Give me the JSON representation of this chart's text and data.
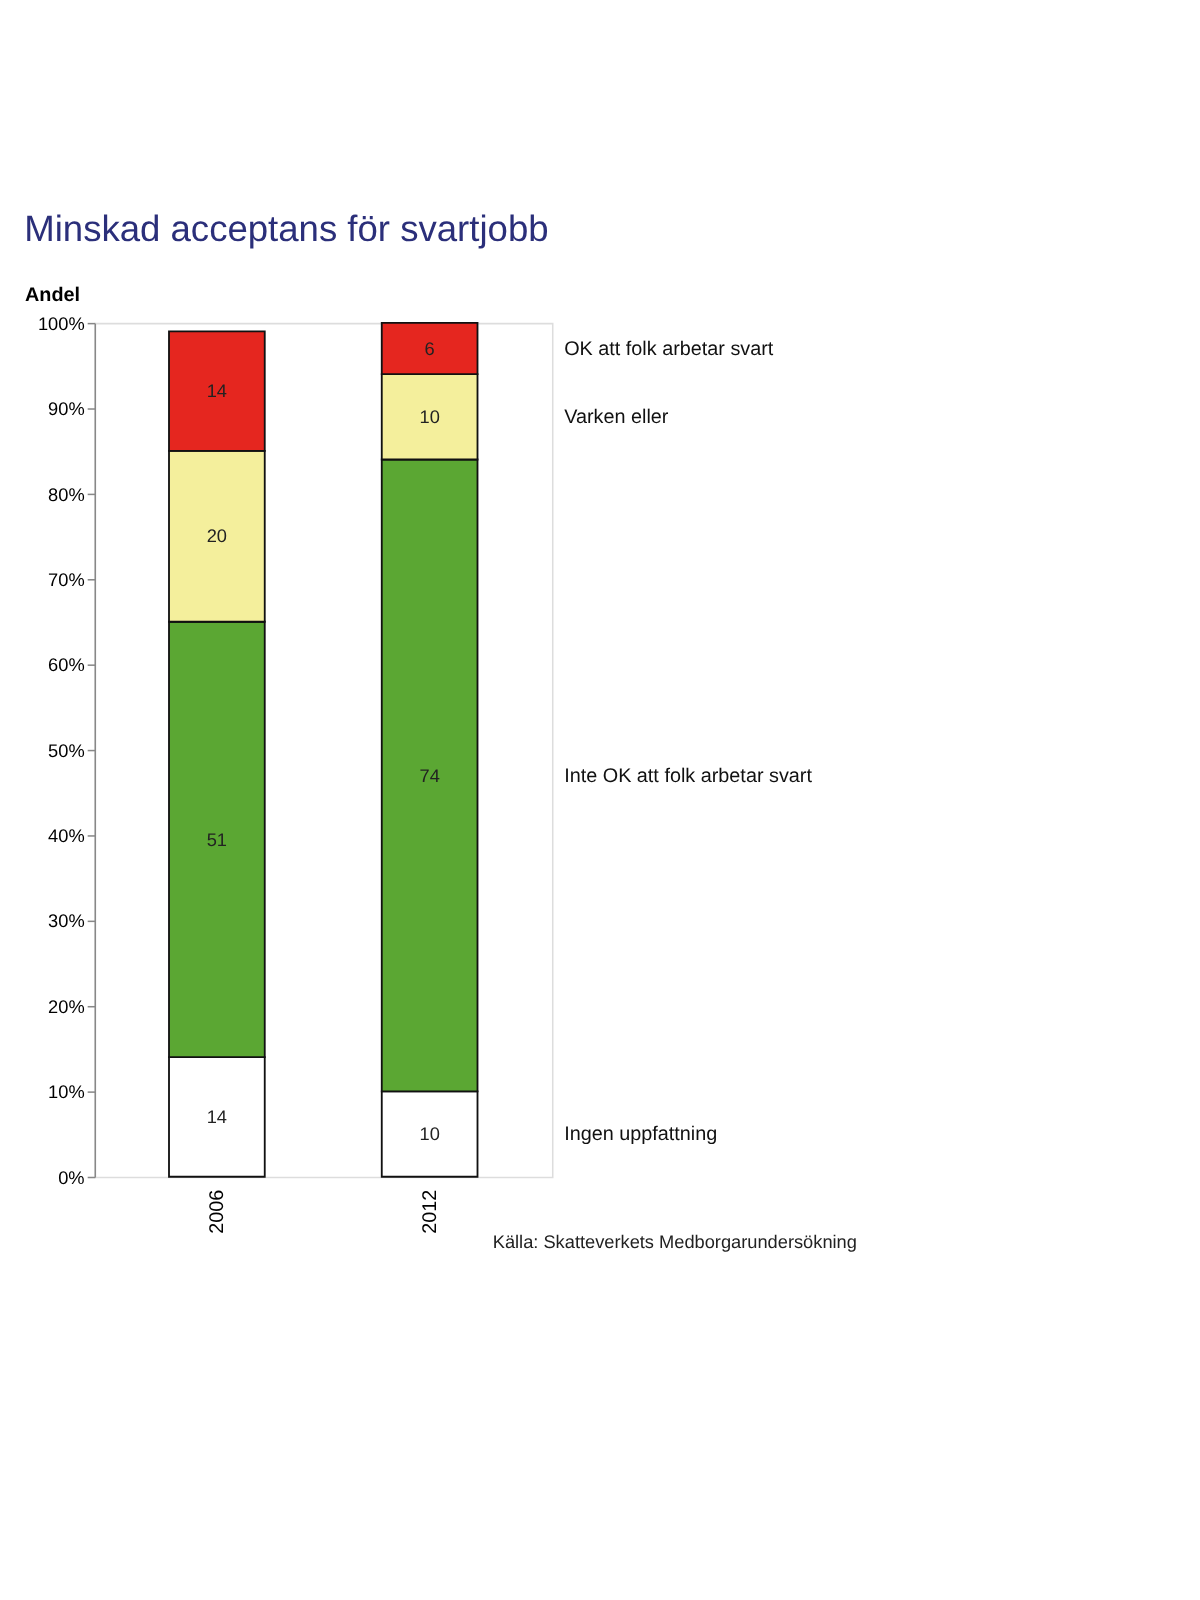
{
  "chart_data": {
    "type": "bar",
    "title": "Minskad acceptans för svartjobb",
    "ylabel": "Andel",
    "categories": [
      "2006",
      "2012"
    ],
    "stacked": true,
    "data_labels": true,
    "legend": "right",
    "grid": false,
    "series": [
      {
        "name": "Ingen uppfattning",
        "color": "#ffffff",
        "values": [
          14,
          10
        ]
      },
      {
        "name": "Inte OK att folk arbetar svart",
        "color": "#5ba733",
        "values": [
          51,
          74
        ]
      },
      {
        "name": "Varken eller",
        "color": "#f4ef9c",
        "values": [
          20,
          10
        ]
      },
      {
        "name": "OK att folk arbetar svart",
        "color": "#e5261f",
        "values": [
          14,
          6
        ]
      }
    ],
    "ylim": [
      0,
      100
    ],
    "yticks": [
      {
        "value": 0,
        "label": "0%"
      },
      {
        "value": 10,
        "label": "10%"
      },
      {
        "value": 20,
        "label": "20%"
      },
      {
        "value": 30,
        "label": "30%"
      },
      {
        "value": 40,
        "label": "40%"
      },
      {
        "value": 50,
        "label": "50%"
      },
      {
        "value": 60,
        "label": "60%"
      },
      {
        "value": 70,
        "label": "70%"
      },
      {
        "value": 80,
        "label": "80%"
      },
      {
        "value": 90,
        "label": "90%"
      },
      {
        "value": 100,
        "label": "100%"
      }
    ],
    "annotations": [
      "Källa: Skatteverkets Medborgarundersökning"
    ]
  }
}
